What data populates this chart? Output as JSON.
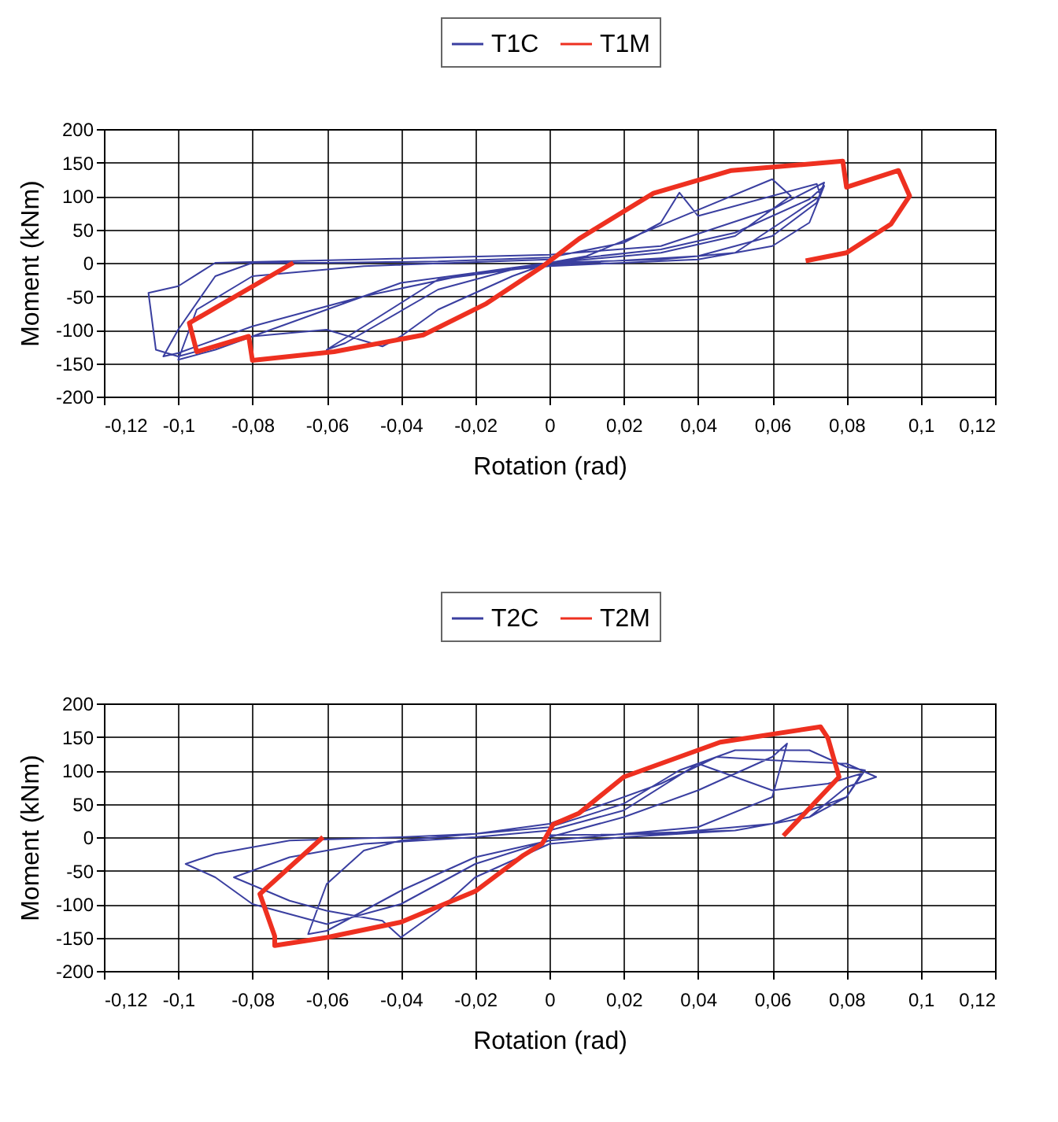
{
  "chart_data": [
    {
      "type": "line",
      "xlabel": "Rotation (rad)",
      "ylabel": "Moment (kNm)",
      "legend": "top",
      "grid": true,
      "xlim": [
        -0.12,
        0.12
      ],
      "ylim": [
        -200,
        200
      ],
      "xticks": [
        {
          "value": -0.12,
          "label": "-0,12"
        },
        {
          "value": -0.1,
          "label": "-0,1"
        },
        {
          "value": -0.08,
          "label": "-0,08"
        },
        {
          "value": -0.06,
          "label": "-0,06"
        },
        {
          "value": -0.04,
          "label": "-0,04"
        },
        {
          "value": -0.02,
          "label": "-0,02"
        },
        0,
        {
          "value": 0.02,
          "label": "0,02"
        },
        {
          "value": 0.04,
          "label": "0,04"
        },
        {
          "value": 0.06,
          "label": "0,06"
        },
        {
          "value": 0.08,
          "label": "0,08"
        },
        {
          "value": 0.1,
          "label": "0,1"
        },
        {
          "value": 0.12,
          "label": "0,12"
        }
      ],
      "yticks": [
        -200,
        -150,
        -100,
        -50,
        0,
        50,
        100,
        150,
        200
      ],
      "series": [
        {
          "name": "T1C",
          "color": "#3a3fa0",
          "x": [
            0,
            0.01,
            0.03,
            0.05,
            0.07,
            0.074,
            0.07,
            0.06,
            0.04,
            0.02,
            0,
            -0.02,
            -0.05,
            -0.08,
            -0.1,
            -0.104,
            -0.1,
            -0.09,
            -0.08,
            -0.06,
            -0.03,
            0,
            0.02,
            0.03,
            0.035,
            0.04,
            0.06,
            0.072,
            0.073,
            0.065,
            0.05,
            0.03,
            0,
            -0.01,
            -0.03,
            -0.04,
            -0.045,
            -0.06,
            -0.08,
            -0.1,
            -0.106,
            -0.108,
            -0.1,
            -0.09,
            -0.05,
            0,
            0.03,
            0.06,
            0.074,
            0.072,
            0.06,
            0.04,
            0,
            -0.03,
            -0.06,
            -0.055,
            -0.03,
            -0.01,
            0.01,
            0.06,
            0.065,
            0.05,
            0.03,
            0,
            -0.04,
            -0.09,
            -0.1,
            -0.095,
            -0.08,
            -0.05,
            0
          ],
          "values": [
            0,
            8,
            20,
            45,
            95,
            115,
            60,
            25,
            5,
            0,
            -5,
            -15,
            -50,
            -95,
            -135,
            -140,
            -100,
            -20,
            0,
            0,
            2,
            8,
            30,
            60,
            105,
            70,
            100,
            118,
            100,
            70,
            15,
            5,
            0,
            -20,
            -70,
            -110,
            -125,
            -100,
            -110,
            -140,
            -130,
            -45,
            -35,
            0,
            5,
            12,
            25,
            80,
            120,
            90,
            40,
            10,
            -3,
            -25,
            -130,
            -120,
            -40,
            -10,
            10,
            125,
            100,
            40,
            15,
            0,
            -30,
            -130,
            -145,
            -70,
            -20,
            -5,
            5
          ]
        },
        {
          "name": "T1M",
          "color": "#ee3020",
          "x": [
            -0.069,
            -0.097,
            -0.095,
            -0.081,
            -0.08,
            -0.058,
            -0.034,
            -0.017,
            -0.002,
            0.008,
            0.028,
            0.049,
            0.079,
            0.08,
            0.094,
            0.097,
            0.092,
            0.08,
            0.069
          ],
          "values": [
            0,
            -90,
            -133,
            -110,
            -146,
            -133,
            -108,
            -61,
            -6,
            36,
            104,
            138,
            152,
            113,
            138,
            100,
            58,
            15,
            3
          ]
        }
      ]
    },
    {
      "type": "line",
      "xlabel": "Rotation (rad)",
      "ylabel": "Moment (kNm)",
      "legend": "top",
      "grid": true,
      "xlim": [
        -0.12,
        0.12
      ],
      "ylim": [
        -200,
        200
      ],
      "xticks": [
        {
          "value": -0.12,
          "label": "-0,12"
        },
        {
          "value": -0.1,
          "label": "-0,1"
        },
        {
          "value": -0.08,
          "label": "-0,08"
        },
        {
          "value": -0.06,
          "label": "-0,06"
        },
        {
          "value": -0.04,
          "label": "-0,04"
        },
        {
          "value": -0.02,
          "label": "-0,02"
        },
        0,
        {
          "value": 0.02,
          "label": "0,02"
        },
        {
          "value": 0.04,
          "label": "0,04"
        },
        {
          "value": 0.06,
          "label": "0,06"
        },
        {
          "value": 0.08,
          "label": "0,08"
        },
        {
          "value": 0.1,
          "label": "0,1"
        },
        {
          "value": 0.12,
          "label": "0,12"
        }
      ],
      "yticks": [
        -200,
        -150,
        -100,
        -50,
        0,
        50,
        100,
        150,
        200
      ],
      "series": [
        {
          "name": "T2C",
          "color": "#3a3fa0",
          "x": [
            0,
            0.02,
            0.04,
            0.06,
            0.064,
            0.06,
            0.04,
            0.02,
            0,
            -0.02,
            -0.04,
            -0.06,
            -0.065,
            -0.06,
            -0.05,
            -0.04,
            -0.02,
            0,
            0.02,
            0.035,
            0.05,
            0.07,
            0.08,
            0.085,
            0.08,
            0.07,
            0.05,
            0.02,
            0,
            -0.02,
            -0.04,
            -0.06,
            -0.08,
            -0.09,
            -0.098,
            -0.09,
            -0.07,
            -0.04,
            -0.02,
            0,
            0.03,
            0.045,
            0.06,
            0.08,
            0.088,
            0.08,
            0.07,
            0.05,
            0.02,
            0,
            -0.02,
            -0.03,
            -0.04,
            -0.045,
            -0.06,
            -0.07,
            -0.085,
            -0.07,
            -0.05,
            -0.02,
            0,
            0.02,
            0.04,
            0.045,
            0.06,
            0.075,
            0.084,
            0.08,
            0.06,
            0.03,
            0
          ],
          "values": [
            0,
            30,
            70,
            120,
            140,
            60,
            15,
            5,
            -5,
            -30,
            -80,
            -140,
            -145,
            -70,
            -20,
            -5,
            5,
            15,
            50,
            100,
            130,
            130,
            105,
            100,
            60,
            30,
            10,
            5,
            -5,
            -40,
            -100,
            -130,
            -100,
            -60,
            -40,
            -25,
            -5,
            0,
            5,
            20,
            80,
            120,
            115,
            110,
            90,
            75,
            30,
            10,
            0,
            -10,
            -60,
            -110,
            -150,
            -125,
            -110,
            -95,
            -60,
            -30,
            -10,
            0,
            10,
            40,
            110,
            100,
            70,
            80,
            95,
            60,
            20,
            5,
            3
          ]
        },
        {
          "name": "T2M",
          "color": "#ee3020",
          "x": [
            -0.061,
            -0.078,
            -0.074,
            -0.074,
            -0.06,
            -0.04,
            -0.02,
            -0.007,
            -0.002,
            0.001,
            0.008,
            0.02,
            0.046,
            0.073,
            0.075,
            0.078,
            0.063
          ],
          "values": [
            0,
            -85,
            -148,
            -162,
            -150,
            -127,
            -81,
            -27,
            -10,
            19,
            36,
            90,
            142,
            165,
            148,
            90,
            2
          ]
        }
      ]
    }
  ]
}
